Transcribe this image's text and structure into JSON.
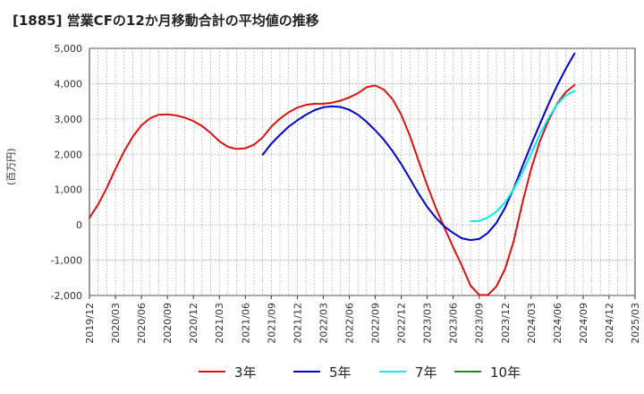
{
  "title": "[1885]  営業CFの12か月移動合計の平均値の推移",
  "ylabel": "(百万円)",
  "chart_data": {
    "type": "line",
    "ylim": [
      -2000,
      5000
    ],
    "yticks": [
      -2000,
      -1000,
      0,
      1000,
      2000,
      3000,
      4000,
      5000
    ],
    "ytick_labels": [
      "-2,000",
      "-1,000",
      "0",
      "1,000",
      "2,000",
      "3,000",
      "4,000",
      "5,000"
    ],
    "xticks": [
      "2019/12",
      "2020/03",
      "2020/06",
      "2020/09",
      "2020/12",
      "2021/03",
      "2021/06",
      "2021/09",
      "2021/12",
      "2022/03",
      "2022/06",
      "2022/09",
      "2022/12",
      "2023/03",
      "2023/06",
      "2023/09",
      "2023/12",
      "2024/03",
      "2024/06",
      "2024/09",
      "2024/12",
      "2025/03"
    ],
    "grid": true,
    "legend_position": "bottom",
    "series": [
      {
        "name": "3年",
        "color": "#dd1111",
        "x": [
          "2019/12",
          "2020/01",
          "2020/02",
          "2020/03",
          "2020/04",
          "2020/05",
          "2020/06",
          "2020/07",
          "2020/08",
          "2020/09",
          "2020/10",
          "2020/11",
          "2020/12",
          "2021/01",
          "2021/02",
          "2021/03",
          "2021/04",
          "2021/05",
          "2021/06",
          "2021/07",
          "2021/08",
          "2021/09",
          "2021/10",
          "2021/11",
          "2021/12",
          "2022/01",
          "2022/02",
          "2022/03",
          "2022/04",
          "2022/05",
          "2022/06",
          "2022/07",
          "2022/08",
          "2022/09",
          "2022/10",
          "2022/11",
          "2022/12",
          "2023/01",
          "2023/02",
          "2023/03",
          "2023/04",
          "2023/05",
          "2023/06",
          "2023/07",
          "2023/08",
          "2023/09",
          "2023/10",
          "2023/11",
          "2023/12",
          "2024/01",
          "2024/02",
          "2024/03",
          "2024/04",
          "2024/05",
          "2024/06",
          "2024/07",
          "2024/08",
          "2024/09"
        ],
        "values": [
          200,
          580,
          1050,
          1580,
          2080,
          2500,
          2820,
          3020,
          3120,
          3130,
          3100,
          3040,
          2940,
          2800,
          2600,
          2370,
          2210,
          2150,
          2170,
          2270,
          2480,
          2780,
          3010,
          3190,
          3320,
          3400,
          3430,
          3430,
          3460,
          3520,
          3610,
          3730,
          3900,
          3950,
          3830,
          3560,
          3120,
          2520,
          1820,
          1120,
          480,
          -90,
          -640,
          -1150,
          -1720,
          -1980,
          -1990,
          -1740,
          -1240,
          -450,
          630,
          1580,
          2360,
          2960,
          3430,
          3760,
          3960,
          null
        ],
        "start": "2019/12"
      },
      {
        "name": "5年",
        "color": "#0000cc",
        "x": [
          "2021/08",
          "2021/09",
          "2021/10",
          "2021/11",
          "2021/12",
          "2022/01",
          "2022/02",
          "2022/03",
          "2022/04",
          "2022/05",
          "2022/06",
          "2022/07",
          "2022/08",
          "2022/09",
          "2022/10",
          "2022/11",
          "2022/12",
          "2023/01",
          "2023/02",
          "2023/03",
          "2023/04",
          "2023/05",
          "2023/06",
          "2023/07",
          "2023/08",
          "2023/09",
          "2023/10",
          "2023/11",
          "2023/12",
          "2024/01",
          "2024/02",
          "2024/03",
          "2024/04",
          "2024/05",
          "2024/06",
          "2024/07",
          "2024/08",
          "2024/09"
        ],
        "values": [
          1990,
          2300,
          2550,
          2780,
          2960,
          3120,
          3250,
          3330,
          3360,
          3340,
          3260,
          3120,
          2920,
          2680,
          2410,
          2090,
          1720,
          1310,
          890,
          510,
          200,
          -50,
          -230,
          -380,
          -430,
          -400,
          -230,
          60,
          490,
          1040,
          1660,
          2270,
          2850,
          3420,
          3950,
          4420,
          4850,
          null
        ]
      },
      {
        "name": "7年",
        "color": "#00eeee",
        "x": [
          "2023/08",
          "2023/09",
          "2023/10",
          "2023/11",
          "2023/12",
          "2024/01",
          "2024/02",
          "2024/03",
          "2024/04",
          "2024/05",
          "2024/06",
          "2024/07",
          "2024/08",
          "2024/09"
        ],
        "values": [
          100,
          110,
          210,
          380,
          640,
          1020,
          1490,
          2020,
          2560,
          3030,
          3410,
          3670,
          3790,
          null
        ]
      },
      {
        "name": "10年",
        "color": "#228822",
        "x": [],
        "values": []
      }
    ]
  }
}
